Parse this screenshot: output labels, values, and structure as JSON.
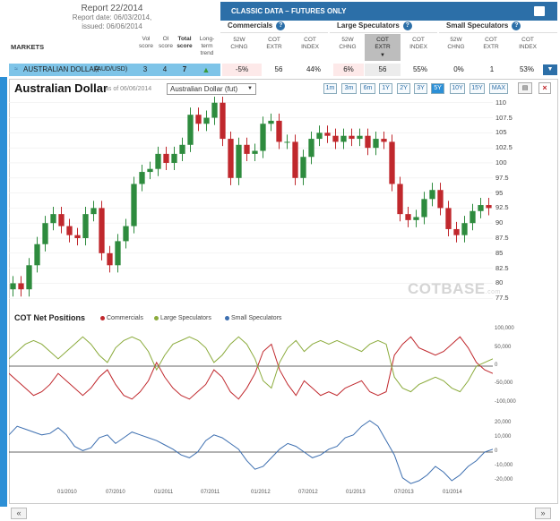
{
  "report": {
    "title": "Report 22/2014",
    "date_line": "Report date: 06/03/2014,",
    "issued_line": "issued: 06/06/2014"
  },
  "markets_label": "MARKETS",
  "score_headers": {
    "vol": "Vol score",
    "oi": "OI score",
    "total": "Total score",
    "trend": "Long-term trend"
  },
  "classic_header": "CLASSIC DATA – FUTURES ONLY",
  "groups": {
    "commercials": "Commercials",
    "large": "Large Speculators",
    "small": "Small Speculators"
  },
  "col_headers": [
    "52W CHNG",
    "COT EXTR",
    "COT INDEX"
  ],
  "market_row": {
    "name": "AUSTRALIAN DOLLAR",
    "code": "(AUD/USD)",
    "vol": "3",
    "oi": "4",
    "total": "7",
    "comm": [
      "-5%",
      "56",
      "44%"
    ],
    "large": [
      "6%",
      "56",
      "55%"
    ],
    "small": [
      "0%",
      "1",
      "53%"
    ]
  },
  "chart_title": "Australian Dollar",
  "as_of": "as of 06/06/2014",
  "selector_value": "Australian Dollar (fut)",
  "ranges": [
    "1m",
    "3m",
    "6m",
    "1Y",
    "2Y",
    "3Y",
    "5Y",
    "10Y",
    "15Y",
    "MAX"
  ],
  "active_range": "5Y",
  "watermark": {
    "main": "COTBASE",
    "suffix": ".com"
  },
  "net_title": "COT Net Positions",
  "legend": [
    "Commercials",
    "Large Speculators",
    "Small Speculators"
  ],
  "colors": {
    "accent": "#2c6fa8",
    "highlight": "#7ec4e8",
    "up": "#2e8b3e",
    "down": "#c0282d",
    "commercials": "#c0282d",
    "large": "#8bab3c",
    "small": "#3d6fb0"
  },
  "nav": {
    "prev": "«",
    "next": "»"
  },
  "chart_data": [
    {
      "type": "candlestick",
      "title": "Australian Dollar",
      "yticks": [
        77.5,
        80,
        82.5,
        85,
        87.5,
        90,
        92.5,
        95,
        97.5,
        100,
        102.5,
        105,
        107.5,
        110
      ],
      "ylim": [
        76.5,
        111
      ],
      "x": [
        "2009-06",
        "2009-07",
        "2009-08",
        "2009-09",
        "2009-10",
        "2009-11",
        "2009-12",
        "2010-01",
        "2010-02",
        "2010-03",
        "2010-04",
        "2010-05",
        "2010-06",
        "2010-07",
        "2010-08",
        "2010-09",
        "2010-10",
        "2010-11",
        "2010-12",
        "2011-01",
        "2011-02",
        "2011-03",
        "2011-04",
        "2011-05",
        "2011-06",
        "2011-07",
        "2011-08",
        "2011-09",
        "2011-10",
        "2011-11",
        "2011-12",
        "2012-01",
        "2012-02",
        "2012-03",
        "2012-04",
        "2012-05",
        "2012-06",
        "2012-07",
        "2012-08",
        "2012-09",
        "2012-10",
        "2012-11",
        "2012-12",
        "2013-01",
        "2013-02",
        "2013-03",
        "2013-04",
        "2013-05",
        "2013-06",
        "2013-07",
        "2013-08",
        "2013-09",
        "2013-10",
        "2013-11",
        "2013-12",
        "2014-01",
        "2014-02",
        "2014-03",
        "2014-04",
        "2014-05"
      ],
      "close": [
        80,
        79,
        83,
        86.5,
        90,
        91.5,
        89.5,
        88,
        87.5,
        91.5,
        92.5,
        85,
        83,
        87,
        89.5,
        96.5,
        98.5,
        99,
        101.5,
        100,
        101.5,
        103,
        108,
        106.5,
        107.5,
        110,
        104,
        97.5,
        103,
        101.5,
        102,
        106.5,
        107,
        103.5,
        103.5,
        97.5,
        101,
        104,
        105,
        104.5,
        103.5,
        104.5,
        104,
        104.5,
        102.5,
        104,
        103.5,
        96.5,
        91.5,
        90.5,
        91,
        94,
        95.5,
        92.5,
        89,
        88,
        90,
        92,
        93,
        92.5
      ]
    },
    {
      "type": "line",
      "title": "COT Net Positions",
      "series_names": [
        "Commercials",
        "Large Speculators"
      ],
      "yticks": [
        -100000,
        -50000,
        0,
        50000,
        100000
      ],
      "ytick_labels": [
        "-100,000",
        "-50,000",
        "0",
        "50,000",
        "100,000"
      ],
      "ylim": [
        -110000,
        110000
      ],
      "commercials": [
        -20000,
        -40000,
        -60000,
        -80000,
        -70000,
        -50000,
        -20000,
        -40000,
        -60000,
        -80000,
        -60000,
        -30000,
        -10000,
        -50000,
        -80000,
        -90000,
        -70000,
        -40000,
        10000,
        -30000,
        -60000,
        -80000,
        -90000,
        -70000,
        -50000,
        -10000,
        -30000,
        -70000,
        -90000,
        -60000,
        -20000,
        40000,
        60000,
        -10000,
        -50000,
        -80000,
        -40000,
        -60000,
        -80000,
        -70000,
        -80000,
        -60000,
        -50000,
        -40000,
        -70000,
        -80000,
        -70000,
        30000,
        60000,
        80000,
        50000,
        40000,
        30000,
        40000,
        60000,
        80000,
        50000,
        10000,
        -10000,
        -20000
      ],
      "large_speculators": [
        20000,
        40000,
        60000,
        70000,
        60000,
        40000,
        20000,
        40000,
        60000,
        80000,
        60000,
        30000,
        10000,
        50000,
        70000,
        80000,
        70000,
        40000,
        -10000,
        30000,
        60000,
        70000,
        80000,
        70000,
        50000,
        10000,
        30000,
        60000,
        80000,
        60000,
        20000,
        -40000,
        -60000,
        10000,
        50000,
        70000,
        40000,
        60000,
        70000,
        60000,
        70000,
        60000,
        50000,
        40000,
        60000,
        70000,
        60000,
        -30000,
        -60000,
        -70000,
        -50000,
        -40000,
        -30000,
        -40000,
        -60000,
        -70000,
        -40000,
        0,
        10000,
        20000
      ]
    },
    {
      "type": "line",
      "title": "Small Speculators",
      "series_names": [
        "Small Speculators"
      ],
      "yticks": [
        -20000,
        -10000,
        0,
        10000,
        20000
      ],
      "ytick_labels": [
        "-20,000",
        "-10,000",
        "0",
        "10,000",
        "20,000"
      ],
      "ylim": [
        -25000,
        25000
      ],
      "small_speculators": [
        12000,
        18000,
        16000,
        14000,
        12000,
        13000,
        17000,
        12000,
        4000,
        1000,
        3000,
        10000,
        12000,
        6000,
        10000,
        14000,
        12000,
        10000,
        8000,
        5000,
        2000,
        -2000,
        -4000,
        0,
        8000,
        12000,
        10000,
        6000,
        2000,
        -6000,
        -12000,
        -10000,
        -4000,
        2000,
        6000,
        4000,
        0,
        -4000,
        -2000,
        2000,
        4000,
        10000,
        12000,
        18000,
        22000,
        18000,
        8000,
        -2000,
        -18000,
        -22000,
        -20000,
        -16000,
        -10000,
        -14000,
        -20000,
        -16000,
        -10000,
        -6000,
        0,
        2000
      ]
    }
  ],
  "x_axis_labels": [
    "01/2010",
    "07/2010",
    "01/2011",
    "07/2011",
    "01/2012",
    "07/2012",
    "01/2013",
    "07/2013",
    "01/2014"
  ]
}
